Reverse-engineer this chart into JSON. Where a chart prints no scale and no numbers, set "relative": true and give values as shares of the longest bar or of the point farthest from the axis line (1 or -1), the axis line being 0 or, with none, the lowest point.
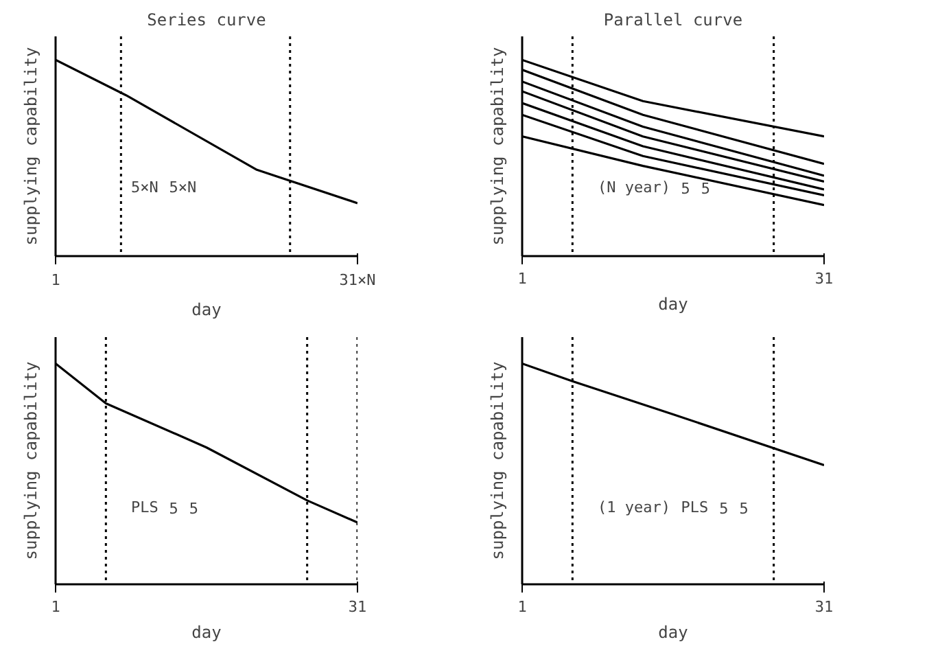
{
  "chart_data": [
    {
      "type": "line",
      "title": "Series curve",
      "xlabel": "day",
      "ylabel": "supplying capability",
      "relative": true,
      "xlim": [
        1,
        31
      ],
      "xticks": [
        1,
        {
          "value": 31,
          "label": "31×N"
        }
      ],
      "grid": false,
      "series": [
        {
          "color": "#000000",
          "x": [
            1,
            8,
            21,
            31
          ],
          "values": [
            1,
            0.82,
            0.44,
            0.27
          ]
        }
      ],
      "ref_lines": [
        {
          "axis": "x",
          "value": 7.5,
          "line_style": "dotted"
        },
        {
          "axis": "x",
          "value": 24.3,
          "line_style": "dotted"
        }
      ],
      "annotations": [
        "5×N",
        "5×N"
      ]
    },
    {
      "type": "line",
      "title": "Parallel curve",
      "xlabel": "day",
      "ylabel": "supplying capability",
      "relative": true,
      "xlim": [
        1,
        31
      ],
      "xticks": [
        1,
        31
      ],
      "grid": false,
      "series": [
        {
          "color": "#000000",
          "x": [
            1,
            13,
            31
          ],
          "values": [
            1,
            0.79,
            0.61
          ]
        },
        {
          "color": "#000000",
          "x": [
            1,
            13,
            31
          ],
          "values": [
            0.95,
            0.72,
            0.47
          ]
        },
        {
          "color": "#000000",
          "x": [
            1,
            13,
            31
          ],
          "values": [
            0.89,
            0.66,
            0.41
          ]
        },
        {
          "color": "#000000",
          "x": [
            1,
            13,
            31
          ],
          "values": [
            0.84,
            0.61,
            0.38
          ]
        },
        {
          "color": "#000000",
          "x": [
            1,
            13,
            31
          ],
          "values": [
            0.78,
            0.56,
            0.34
          ]
        },
        {
          "color": "#000000",
          "x": [
            1,
            13,
            31
          ],
          "values": [
            0.72,
            0.51,
            0.31
          ]
        },
        {
          "color": "#000000",
          "x": [
            1,
            13,
            31
          ],
          "values": [
            0.61,
            0.46,
            0.26
          ]
        }
      ],
      "ref_lines": [
        {
          "axis": "x",
          "value": 6,
          "line_style": "dotted"
        },
        {
          "axis": "x",
          "value": 26,
          "line_style": "dotted"
        }
      ],
      "annotations": [
        "(N year)",
        "5",
        "5"
      ]
    },
    {
      "type": "line",
      "xlabel": "day",
      "ylabel": "supplying capability",
      "relative": true,
      "xlim": [
        1,
        31
      ],
      "xticks": [
        1,
        31
      ],
      "grid": false,
      "series": [
        {
          "color": "#000000",
          "x": [
            1,
            6,
            16,
            26,
            31
          ],
          "values": [
            1,
            0.82,
            0.62,
            0.38,
            0.28
          ]
        }
      ],
      "ref_lines": [
        {
          "axis": "x",
          "value": 6,
          "line_style": "dotted"
        },
        {
          "axis": "x",
          "value": 26,
          "line_style": "dotted"
        },
        {
          "axis": "x",
          "value": 31,
          "line_style": "dotted"
        }
      ],
      "annotations": [
        "PLS",
        "5",
        "5"
      ]
    },
    {
      "type": "line",
      "xlabel": "day",
      "ylabel": "supplying capability",
      "relative": true,
      "xlim": [
        1,
        31
      ],
      "xticks": [
        1,
        31
      ],
      "grid": false,
      "series": [
        {
          "color": "#000000",
          "x": [
            1,
            6,
            16,
            31
          ],
          "values": [
            1,
            0.92,
            0.77,
            0.54
          ]
        }
      ],
      "ref_lines": [
        {
          "axis": "x",
          "value": 6,
          "line_style": "dotted"
        },
        {
          "axis": "x",
          "value": 26,
          "line_style": "dotted"
        }
      ],
      "annotations": [
        "(1 year)",
        "PLS",
        "5",
        "5"
      ]
    }
  ]
}
